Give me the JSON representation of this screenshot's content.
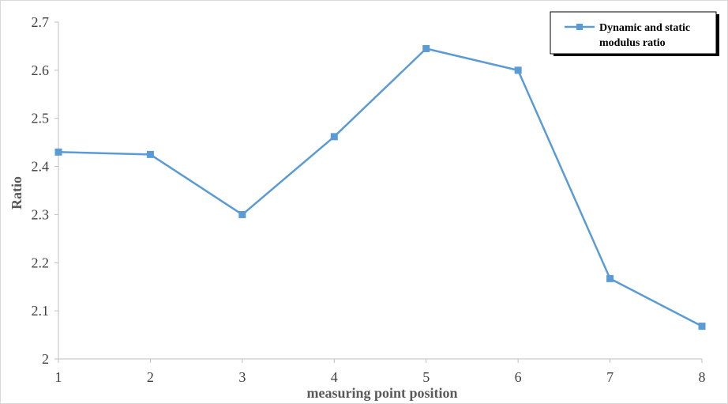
{
  "chart_data": {
    "type": "line",
    "title": "",
    "xlabel": "measuring point position",
    "ylabel": "Ratio",
    "categories": [
      "1",
      "2",
      "3",
      "4",
      "5",
      "6",
      "7",
      "8"
    ],
    "ylim": [
      2,
      2.7
    ],
    "yticks": [
      "2",
      "2.1",
      "2.2",
      "2.3",
      "2.4",
      "2.5",
      "2.6",
      "2.7"
    ],
    "grid": false,
    "legend_position": "top-right",
    "series": [
      {
        "name": "Dynamic and static modulus ratio",
        "legend_lines": [
          "Dynamic and static",
          "modulus ratio"
        ],
        "values": [
          2.43,
          2.425,
          2.3,
          2.462,
          2.645,
          2.6,
          2.167,
          2.068
        ],
        "color": "#5b9bd5",
        "marker": "square"
      }
    ]
  }
}
